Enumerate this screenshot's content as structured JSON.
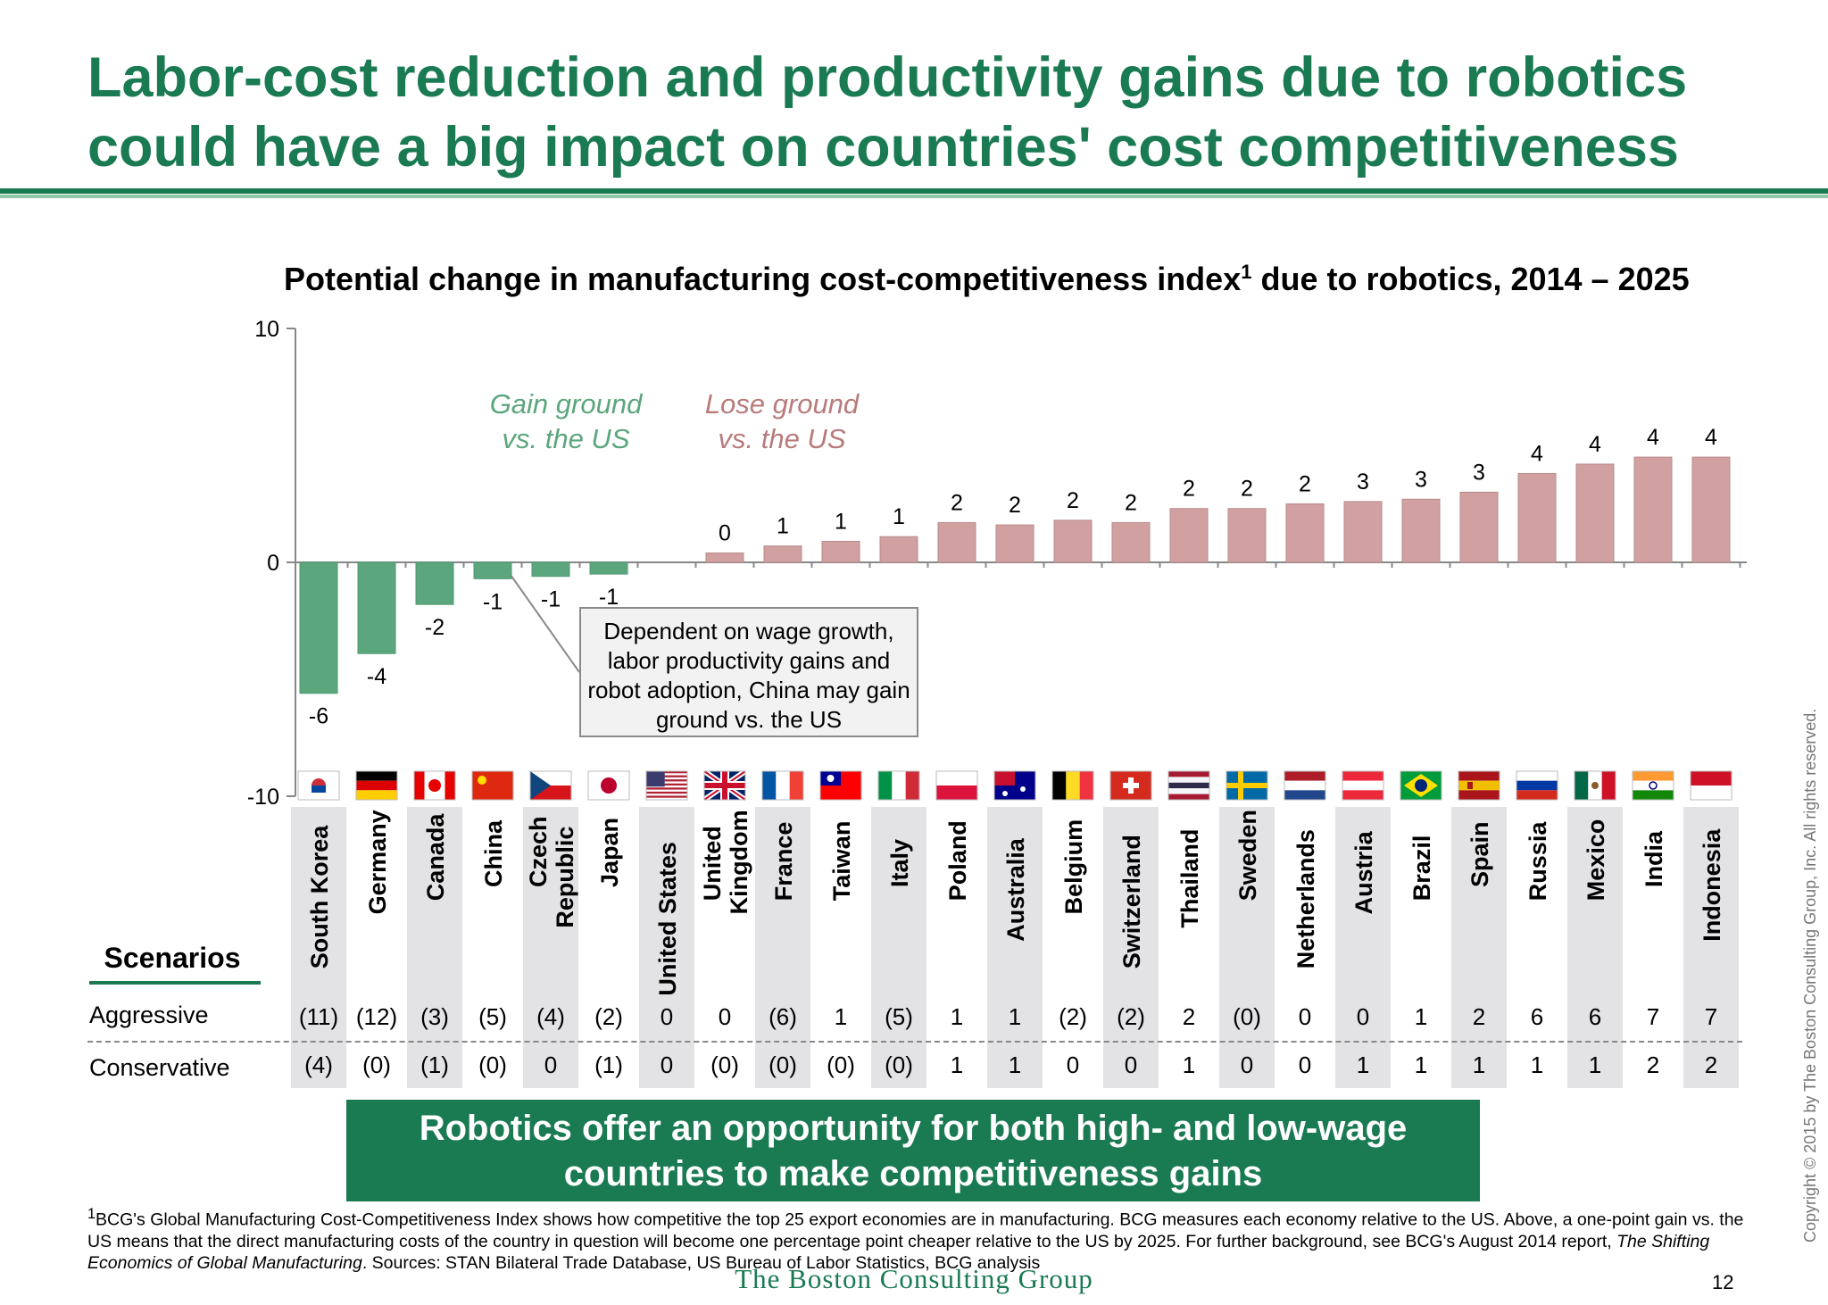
{
  "title": "Labor-cost reduction and productivity gains due to robotics could have a big impact on countries' cost competitiveness",
  "colors": {
    "brand_green": "#1a7a52",
    "gain_bar": "#5ca67d",
    "lose_bar": "#d1a1a1",
    "column_shade": "#e3e3e5"
  },
  "chart_data": {
    "type": "bar",
    "title": "Potential change in manufacturing cost-competitiveness index",
    "title_superscript": "1",
    "title_suffix": " due to robotics, 2014 – 2025",
    "ylim": [
      -10,
      10
    ],
    "y_ticks": [
      "10",
      "0",
      "-10"
    ],
    "categories": [
      "South Korea",
      "Germany",
      "Canada",
      "China",
      "Czech Republic",
      "Japan",
      "United States",
      "United Kingdom",
      "France",
      "Taiwan",
      "Italy",
      "Poland",
      "Australia",
      "Belgium",
      "Switzerland",
      "Thailand",
      "Sweden",
      "Netherlands",
      "Austria",
      "Brazil",
      "Spain",
      "Russia",
      "Mexico",
      "India",
      "Indonesia"
    ],
    "values": [
      -5.6,
      -3.9,
      -1.8,
      -0.7,
      -0.6,
      -0.5,
      null,
      0.4,
      0.7,
      0.9,
      1.1,
      1.7,
      1.6,
      1.8,
      1.7,
      2.3,
      2.3,
      2.5,
      2.6,
      2.7,
      3.0,
      3.8,
      4.2,
      4.5,
      4.5
    ],
    "value_labels": [
      "-6",
      "-4",
      "-2",
      "-1",
      "-1",
      "-1",
      "",
      "0",
      "1",
      "1",
      "1",
      "2",
      "2",
      "2",
      "2",
      "2",
      "2",
      "2",
      "3",
      "3",
      "3",
      "4",
      "4",
      "4",
      "4"
    ],
    "annotations": {
      "gain": "Gain ground\nvs. the US",
      "lose": "Lose ground\nvs. the US",
      "callout": "Dependent on wage growth, labor productivity gains and robot adoption, China may gain ground vs. the US"
    },
    "flag_icons": [
      "south-korea-flag-icon",
      "germany-flag-icon",
      "canada-flag-icon",
      "china-flag-icon",
      "czech-republic-flag-icon",
      "japan-flag-icon",
      "united-states-flag-icon",
      "united-kingdom-flag-icon",
      "france-flag-icon",
      "taiwan-flag-icon",
      "italy-flag-icon",
      "poland-flag-icon",
      "australia-flag-icon",
      "belgium-flag-icon",
      "switzerland-flag-icon",
      "thailand-flag-icon",
      "sweden-flag-icon",
      "netherlands-flag-icon",
      "austria-flag-icon",
      "brazil-flag-icon",
      "spain-flag-icon",
      "russia-flag-icon",
      "mexico-flag-icon",
      "india-flag-icon",
      "indonesia-flag-icon"
    ]
  },
  "scenarios": {
    "title": "Scenarios",
    "rows": [
      {
        "label": "Aggressive",
        "values": [
          "(11)",
          "(12)",
          "(3)",
          "(5)",
          "(4)",
          "(2)",
          "0",
          "0",
          "(6)",
          "1",
          "(5)",
          "1",
          "1",
          "(2)",
          "(2)",
          "2",
          "(0)",
          "0",
          "0",
          "1",
          "2",
          "6",
          "6",
          "7",
          "7"
        ]
      },
      {
        "label": "Conservative",
        "values": [
          "(4)",
          "(0)",
          "(1)",
          "(0)",
          "0",
          "(1)",
          "0",
          "(0)",
          "(0)",
          "(0)",
          "(0)",
          "1",
          "1",
          "0",
          "0",
          "1",
          "0",
          "0",
          "1",
          "1",
          "1",
          "1",
          "1",
          "2",
          "2"
        ]
      }
    ]
  },
  "conclusion": "Robotics offer an opportunity for both high- and low-wage countries to make competitiveness gains",
  "footnote": {
    "marker": "1",
    "text1": "BCG's Global Manufacturing Cost-Competitiveness Index shows how competitive the top 25 export economies are in manufacturing. BCG measures each economy relative to the US. Above, a one-point gain vs. the US means that the direct manufacturing costs of the country in question will become one percentage point cheaper relative to the US by 2025. For further background, see BCG's August 2014 report, ",
    "italic": "The Shifting Economics of Global Manufacturing",
    "text2": ". Sources: STAN Bilateral Trade Database, US Bureau of Labor Statistics, BCG analysis"
  },
  "logo": "The Boston Consulting Group",
  "page_number": "12",
  "copyright": "Copyright © 2015 by The Boston Consulting Group, Inc. All rights reserved."
}
